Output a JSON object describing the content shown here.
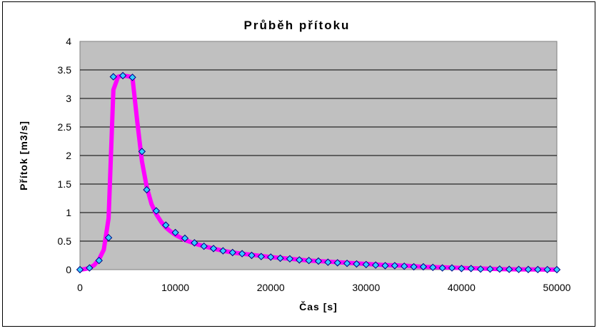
{
  "chart_data": {
    "type": "scatter",
    "title": "Průběh přítoku",
    "xlabel": "Čas [s]",
    "ylabel": "Přítok [m3/s]",
    "xlim": [
      0,
      50000
    ],
    "ylim": [
      0,
      4
    ],
    "x_ticks": [
      "0",
      "10000",
      "20000",
      "30000",
      "40000",
      "50000"
    ],
    "y_ticks": [
      "0",
      "0.5",
      "1",
      "1.5",
      "2",
      "2.5",
      "3",
      "3.5",
      "4"
    ],
    "grid": "horizontal",
    "legend": "none",
    "plot_background": "#c0c0c0",
    "line_color": "#ff00ff",
    "marker_color": "#33ccff",
    "series": [
      {
        "x": [
          0,
          500,
          1000,
          1500,
          2000,
          2500,
          3000,
          3500,
          4000,
          4500,
          5000,
          5500,
          6000,
          6500,
          7000,
          7500,
          8000,
          8500,
          9000,
          9500,
          10000,
          11000,
          12000,
          13000,
          14000,
          15000,
          16000,
          17000,
          18000,
          19000,
          20000,
          22000,
          24000,
          26000,
          28000,
          30000,
          32000,
          34000,
          36000,
          38000,
          40000,
          42000,
          44000,
          46000,
          48000,
          50000
        ],
        "y": [
          0,
          0.01,
          0.03,
          0.08,
          0.18,
          0.35,
          0.9,
          3.15,
          3.38,
          3.4,
          3.39,
          3.37,
          2.6,
          1.9,
          1.45,
          1.15,
          0.97,
          0.84,
          0.74,
          0.67,
          0.61,
          0.52,
          0.46,
          0.41,
          0.37,
          0.33,
          0.3,
          0.28,
          0.26,
          0.24,
          0.22,
          0.19,
          0.16,
          0.14,
          0.12,
          0.1,
          0.08,
          0.07,
          0.05,
          0.04,
          0.03,
          0.02,
          0.01,
          0.005,
          0.002,
          0
        ]
      }
    ],
    "markers": {
      "x": [
        0,
        1000,
        2000,
        3000,
        3500,
        4500,
        5500,
        6500,
        7000,
        8000,
        9000,
        10000,
        11000,
        12000,
        13000,
        14000,
        15000,
        16000,
        17000,
        18000,
        19000,
        20000,
        21000,
        22000,
        23000,
        24000,
        25000,
        26000,
        27000,
        28000,
        29000,
        30000,
        31000,
        32000,
        33000,
        34000,
        35000,
        36000,
        37000,
        38000,
        39000,
        40000,
        41000,
        42000,
        43000,
        44000,
        45000,
        46000,
        47000,
        48000,
        49000,
        50000
      ],
      "y": [
        0,
        0.03,
        0.16,
        0.56,
        3.38,
        3.4,
        3.37,
        2.07,
        1.4,
        1.03,
        0.78,
        0.65,
        0.55,
        0.47,
        0.41,
        0.37,
        0.33,
        0.3,
        0.28,
        0.25,
        0.23,
        0.22,
        0.2,
        0.19,
        0.17,
        0.16,
        0.15,
        0.13,
        0.12,
        0.11,
        0.1,
        0.09,
        0.08,
        0.07,
        0.07,
        0.06,
        0.05,
        0.05,
        0.04,
        0.03,
        0.03,
        0.02,
        0.02,
        0.01,
        0.01,
        0.01,
        0.005,
        0.004,
        0.003,
        0.002,
        0.001,
        0
      ]
    }
  }
}
